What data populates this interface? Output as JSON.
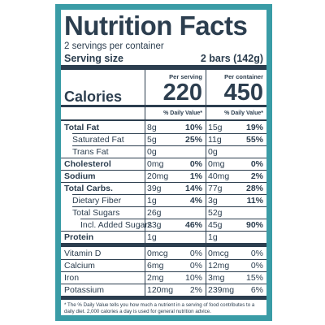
{
  "title": "Nutrition Facts",
  "servings": "2 servings per container",
  "serving_size": {
    "label": "Serving size",
    "value": "2 bars (142g)"
  },
  "columns": [
    "Per serving",
    "Per container"
  ],
  "calories": {
    "label": "Calories",
    "values": [
      "220",
      "450"
    ]
  },
  "dv_header": "% Daily Value*",
  "nutrients": [
    {
      "name": "Total Fat",
      "bold": true,
      "indent": 0,
      "cells": [
        [
          "8g",
          "10%"
        ],
        [
          "15g",
          "19%"
        ]
      ]
    },
    {
      "name": "Saturated Fat",
      "bold": false,
      "indent": 1,
      "cells": [
        [
          "5g",
          "25%"
        ],
        [
          "11g",
          "55%"
        ]
      ]
    },
    {
      "name": "Trans Fat",
      "bold": false,
      "indent": 1,
      "cells": [
        [
          "0g"
        ],
        [
          "0g"
        ]
      ]
    },
    {
      "name": "Cholesterol",
      "bold": true,
      "indent": 0,
      "cells": [
        [
          "0mg",
          "0%"
        ],
        [
          "0mg",
          "0%"
        ]
      ]
    },
    {
      "name": "Sodium",
      "bold": true,
      "indent": 0,
      "cells": [
        [
          "20mg",
          "1%"
        ],
        [
          "40mg",
          "2%"
        ]
      ]
    },
    {
      "name": "Total Carbs.",
      "bold": true,
      "indent": 0,
      "cells": [
        [
          "39g",
          "14%"
        ],
        [
          "77g",
          "28%"
        ]
      ]
    },
    {
      "name": "Dietary Fiber",
      "bold": false,
      "indent": 1,
      "cells": [
        [
          "1g",
          "4%"
        ],
        [
          "3g",
          "11%"
        ]
      ]
    },
    {
      "name": "Total Sugars",
      "bold": false,
      "indent": 1,
      "cells": [
        [
          "26g"
        ],
        [
          "52g"
        ]
      ]
    },
    {
      "name": "Incl. Added Sugars",
      "bold": false,
      "indent": 2,
      "cells": [
        [
          "23g",
          "46%"
        ],
        [
          "45g",
          "90%"
        ]
      ]
    },
    {
      "name": "Protein",
      "bold": true,
      "indent": 0,
      "cells": [
        [
          "1g"
        ],
        [
          "1g"
        ]
      ]
    }
  ],
  "vitamins": [
    {
      "name": "Vitamin D",
      "cells": [
        [
          "0mcg",
          "0%"
        ],
        [
          "0mcg",
          "0%"
        ]
      ]
    },
    {
      "name": "Calcium",
      "cells": [
        [
          "6mg",
          "0%"
        ],
        [
          "12mg",
          "0%"
        ]
      ]
    },
    {
      "name": "Iron",
      "cells": [
        [
          "2mg",
          "10%"
        ],
        [
          "3mg",
          "15%"
        ]
      ]
    },
    {
      "name": "Potassium",
      "cells": [
        [
          "120mg",
          "2%"
        ],
        [
          "239mg",
          "6%"
        ]
      ]
    }
  ],
  "footnote": "* The % Daily Value tells you how much a nutrient in a serving of food contributes to a daily diet. 2,000 calories a day is used for general nutrition advice."
}
